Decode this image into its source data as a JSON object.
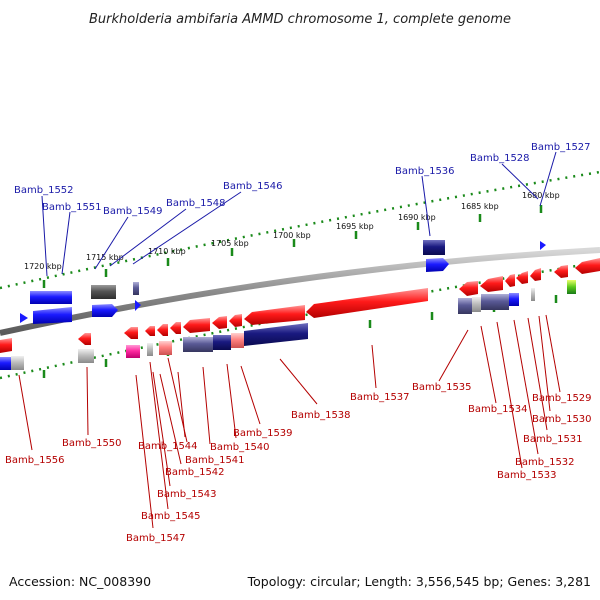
{
  "title": "Burkholderia ambifaria AMMD chromosome 1, complete genome",
  "accession": "Accession: NC_008390",
  "topology": "Topology: circular; Length: 3,556,545 bp; Genes: 3,281",
  "scale_labels": [
    "1720 kbp",
    "1715 kbp",
    "1710 kbp",
    "1705 kbp",
    "1700 kbp",
    "1695 kbp",
    "1690 kbp",
    "1685 kbp",
    "1680 kbp"
  ],
  "genes_top": [
    "Bamb_1552",
    "Bamb_1551",
    "Bamb_1549",
    "Bamb_1548",
    "Bamb_1546",
    "Bamb_1536",
    "Bamb_1528",
    "Bamb_1527"
  ],
  "genes_bottom": [
    "Bamb_1556",
    "Bamb_1550",
    "Bamb_1544",
    "Bamb_1542",
    "Bamb_1543",
    "Bamb_1545",
    "Bamb_1547",
    "Bamb_1541",
    "Bamb_1540",
    "Bamb_1539",
    "Bamb_1538",
    "Bamb_1537",
    "Bamb_1535",
    "Bamb_1534",
    "Bamb_1533",
    "Bamb_1532",
    "Bamb_1531",
    "Bamb_1530",
    "Bamb_1529"
  ],
  "colors": {
    "forward": "#1a1aff",
    "reverse": "#ff1a1a",
    "backbone": "#8c8c8c",
    "scale": "#1a8a1a",
    "top_label": "#1a1aa8",
    "bottom_label": "#b40000"
  }
}
